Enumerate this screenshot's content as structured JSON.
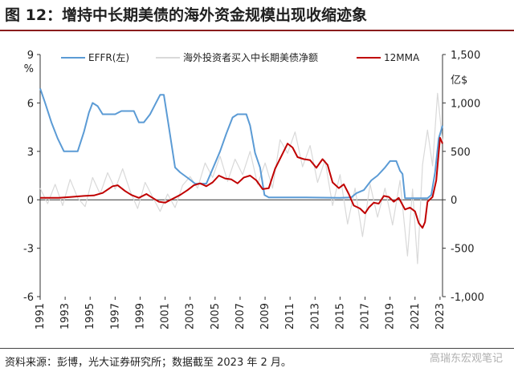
{
  "header": {
    "title": "图 12：增持中长期美债的海外资金规模出现收缩迹象"
  },
  "footer": {
    "source": "资料来源：彭博，光大证券研究所；数据截至 2023 年 2 月。",
    "watermark": "高瑞东宏观笔记"
  },
  "chart_data": {
    "type": "line",
    "title": "",
    "xlabel": "",
    "left_axis": {
      "unit": "%",
      "ylim": [
        -6,
        9
      ],
      "ticks": [
        "9",
        "6",
        "3",
        "0",
        "-3",
        "-6"
      ]
    },
    "right_axis": {
      "unit": "亿$",
      "ylim": [
        -1000,
        1500
      ],
      "ticks": [
        "1,500",
        "1,000",
        "500",
        "0",
        "-500",
        "-1,000"
      ]
    },
    "x_ticks": [
      "1991",
      "1993",
      "1995",
      "1997",
      "1999",
      "2001",
      "2003",
      "2005",
      "2007",
      "2009",
      "2011",
      "2013",
      "2015",
      "2017",
      "2019",
      "2021",
      "2023"
    ],
    "xlim": [
      1991,
      2023.2
    ],
    "legend_position": "top",
    "colors": {
      "effr": "#5b9bd5",
      "net": "#d9d9d9",
      "ma": "#c00000"
    },
    "series": [
      {
        "name": "EFFR(左)",
        "axis": "left",
        "points": [
          [
            1991.0,
            6.9
          ],
          [
            1991.4,
            6.0
          ],
          [
            1991.9,
            4.8
          ],
          [
            1992.4,
            3.8
          ],
          [
            1992.9,
            3.0
          ],
          [
            1993.5,
            3.0
          ],
          [
            1994.0,
            3.0
          ],
          [
            1994.5,
            4.2
          ],
          [
            1994.9,
            5.4
          ],
          [
            1995.2,
            6.0
          ],
          [
            1995.6,
            5.8
          ],
          [
            1996.0,
            5.3
          ],
          [
            1996.5,
            5.3
          ],
          [
            1997.0,
            5.3
          ],
          [
            1997.5,
            5.5
          ],
          [
            1998.0,
            5.5
          ],
          [
            1998.5,
            5.5
          ],
          [
            1998.9,
            4.8
          ],
          [
            1999.3,
            4.8
          ],
          [
            1999.8,
            5.3
          ],
          [
            2000.2,
            5.9
          ],
          [
            2000.6,
            6.5
          ],
          [
            2000.9,
            6.5
          ],
          [
            2001.3,
            4.5
          ],
          [
            2001.8,
            2.0
          ],
          [
            2002.2,
            1.7
          ],
          [
            2002.9,
            1.3
          ],
          [
            2003.4,
            1.0
          ],
          [
            2004.3,
            1.0
          ],
          [
            2004.8,
            1.9
          ],
          [
            2005.4,
            3.0
          ],
          [
            2005.9,
            4.1
          ],
          [
            2006.4,
            5.1
          ],
          [
            2006.8,
            5.3
          ],
          [
            2007.5,
            5.3
          ],
          [
            2007.8,
            4.6
          ],
          [
            2008.2,
            2.9
          ],
          [
            2008.6,
            2.0
          ],
          [
            2008.95,
            0.3
          ],
          [
            2009.3,
            0.15
          ],
          [
            2012.0,
            0.15
          ],
          [
            2015.0,
            0.12
          ],
          [
            2015.9,
            0.15
          ],
          [
            2016.3,
            0.4
          ],
          [
            2016.9,
            0.6
          ],
          [
            2017.5,
            1.2
          ],
          [
            2018.0,
            1.5
          ],
          [
            2018.6,
            2.0
          ],
          [
            2019.0,
            2.4
          ],
          [
            2019.5,
            2.4
          ],
          [
            2019.8,
            1.8
          ],
          [
            2020.0,
            1.6
          ],
          [
            2020.2,
            0.1
          ],
          [
            2022.0,
            0.1
          ],
          [
            2022.3,
            0.3
          ],
          [
            2022.6,
            1.7
          ],
          [
            2022.9,
            3.8
          ],
          [
            2023.2,
            4.6
          ]
        ]
      },
      {
        "name": "海外投资者买入中长期美债净额",
        "axis": "right",
        "points": [
          [
            1991.0,
            120
          ],
          [
            1991.6,
            -40
          ],
          [
            1992.2,
            160
          ],
          [
            1992.8,
            -60
          ],
          [
            1993.4,
            210
          ],
          [
            1994.0,
            20
          ],
          [
            1994.6,
            -70
          ],
          [
            1995.2,
            230
          ],
          [
            1995.8,
            60
          ],
          [
            1996.4,
            280
          ],
          [
            1997.0,
            110
          ],
          [
            1997.6,
            320
          ],
          [
            1998.2,
            90
          ],
          [
            1998.8,
            -90
          ],
          [
            1999.4,
            180
          ],
          [
            2000.0,
            30
          ],
          [
            2000.6,
            -120
          ],
          [
            2001.2,
            60
          ],
          [
            2001.8,
            -80
          ],
          [
            2002.4,
            150
          ],
          [
            2003.0,
            240
          ],
          [
            2003.6,
            120
          ],
          [
            2004.2,
            380
          ],
          [
            2004.8,
            230
          ],
          [
            2005.4,
            450
          ],
          [
            2006.0,
            190
          ],
          [
            2006.6,
            420
          ],
          [
            2007.2,
            260
          ],
          [
            2007.8,
            500
          ],
          [
            2008.4,
            160
          ],
          [
            2009.0,
            380
          ],
          [
            2009.6,
            120
          ],
          [
            2010.2,
            620
          ],
          [
            2010.8,
            480
          ],
          [
            2011.4,
            700
          ],
          [
            2012.0,
            340
          ],
          [
            2012.6,
            560
          ],
          [
            2013.2,
            180
          ],
          [
            2013.8,
            410
          ],
          [
            2014.4,
            -60
          ],
          [
            2015.0,
            260
          ],
          [
            2015.6,
            -250
          ],
          [
            2016.2,
            120
          ],
          [
            2016.8,
            -380
          ],
          [
            2017.4,
            160
          ],
          [
            2018.0,
            -180
          ],
          [
            2018.6,
            120
          ],
          [
            2019.2,
            -260
          ],
          [
            2019.8,
            200
          ],
          [
            2020.4,
            -580
          ],
          [
            2020.8,
            110
          ],
          [
            2021.2,
            -660
          ],
          [
            2021.6,
            360
          ],
          [
            2022.0,
            720
          ],
          [
            2022.4,
            350
          ],
          [
            2022.8,
            1100
          ],
          [
            2023.2,
            600
          ]
        ]
      },
      {
        "name": "12MMA",
        "axis": "right",
        "points": [
          [
            1991.0,
            20
          ],
          [
            1992.5,
            20
          ],
          [
            1993.5,
            30
          ],
          [
            1994.5,
            40
          ],
          [
            1995.3,
            45
          ],
          [
            1996.0,
            70
          ],
          [
            1996.8,
            140
          ],
          [
            1997.2,
            150
          ],
          [
            1997.8,
            90
          ],
          [
            1998.3,
            50
          ],
          [
            1998.9,
            20
          ],
          [
            1999.5,
            60
          ],
          [
            2000.0,
            20
          ],
          [
            2000.5,
            -20
          ],
          [
            2001.0,
            -30
          ],
          [
            2001.6,
            10
          ],
          [
            2002.2,
            50
          ],
          [
            2002.8,
            100
          ],
          [
            2003.3,
            150
          ],
          [
            2003.8,
            170
          ],
          [
            2004.3,
            140
          ],
          [
            2004.8,
            180
          ],
          [
            2005.3,
            250
          ],
          [
            2005.8,
            220
          ],
          [
            2006.3,
            210
          ],
          [
            2006.8,
            170
          ],
          [
            2007.3,
            230
          ],
          [
            2007.8,
            250
          ],
          [
            2008.3,
            200
          ],
          [
            2008.8,
            110
          ],
          [
            2009.3,
            120
          ],
          [
            2009.8,
            320
          ],
          [
            2010.3,
            450
          ],
          [
            2010.8,
            580
          ],
          [
            2011.2,
            540
          ],
          [
            2011.6,
            440
          ],
          [
            2012.1,
            420
          ],
          [
            2012.6,
            410
          ],
          [
            2013.1,
            330
          ],
          [
            2013.6,
            420
          ],
          [
            2014.0,
            360
          ],
          [
            2014.4,
            180
          ],
          [
            2014.9,
            120
          ],
          [
            2015.3,
            160
          ],
          [
            2015.7,
            60
          ],
          [
            2016.1,
            -60
          ],
          [
            2016.6,
            -90
          ],
          [
            2017.0,
            -140
          ],
          [
            2017.3,
            -80
          ],
          [
            2017.7,
            -30
          ],
          [
            2018.1,
            -40
          ],
          [
            2018.5,
            40
          ],
          [
            2018.9,
            30
          ],
          [
            2019.3,
            -20
          ],
          [
            2019.7,
            20
          ],
          [
            2020.2,
            -100
          ],
          [
            2020.6,
            -80
          ],
          [
            2021.0,
            -120
          ],
          [
            2021.3,
            -240
          ],
          [
            2021.6,
            -290
          ],
          [
            2021.8,
            -230
          ],
          [
            2022.0,
            -20
          ],
          [
            2022.4,
            30
          ],
          [
            2022.7,
            200
          ],
          [
            2023.0,
            640
          ],
          [
            2023.2,
            580
          ]
        ]
      }
    ]
  }
}
